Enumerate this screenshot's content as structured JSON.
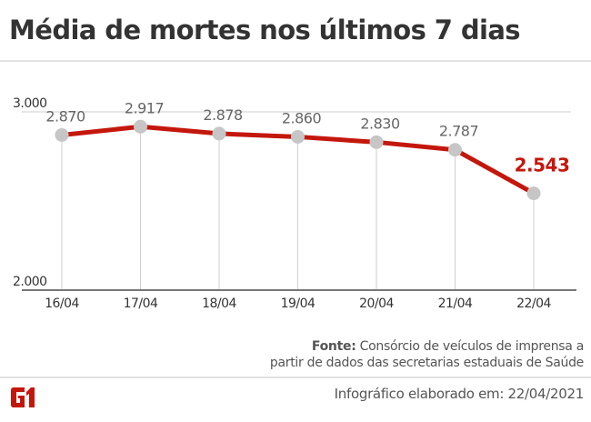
{
  "title": "Média de mortes nos últimos 7 dias",
  "chart_data": {
    "type": "line",
    "title": "Média de mortes nos últimos 7 dias",
    "categories": [
      "16/04",
      "17/04",
      "18/04",
      "19/04",
      "20/04",
      "21/04",
      "22/04"
    ],
    "values": [
      2870,
      2917,
      2878,
      2860,
      2830,
      2787,
      2543
    ],
    "value_labels": [
      "2.870",
      "2.917",
      "2.878",
      "2.860",
      "2.830",
      "2.787",
      "2.543"
    ],
    "ylim": [
      2000,
      3000
    ],
    "yticks": [
      {
        "value": 2000,
        "label": "2.000"
      },
      {
        "value": 3000,
        "label": "3.000"
      }
    ],
    "highlight_index": 6,
    "colors": {
      "line": "#c4170c",
      "marker": "#c6c6c6",
      "label": "#666666",
      "highlight": "#c4170c"
    },
    "grid": true
  },
  "footer": {
    "source_label": "Fonte:",
    "source_line1": "Consórcio de veículos de imprensa a",
    "source_line2": "partir de dados das secretarias estaduais de Saúde",
    "made": "Infográfico elaborado em: 22/04/2021",
    "logo": "G1"
  }
}
